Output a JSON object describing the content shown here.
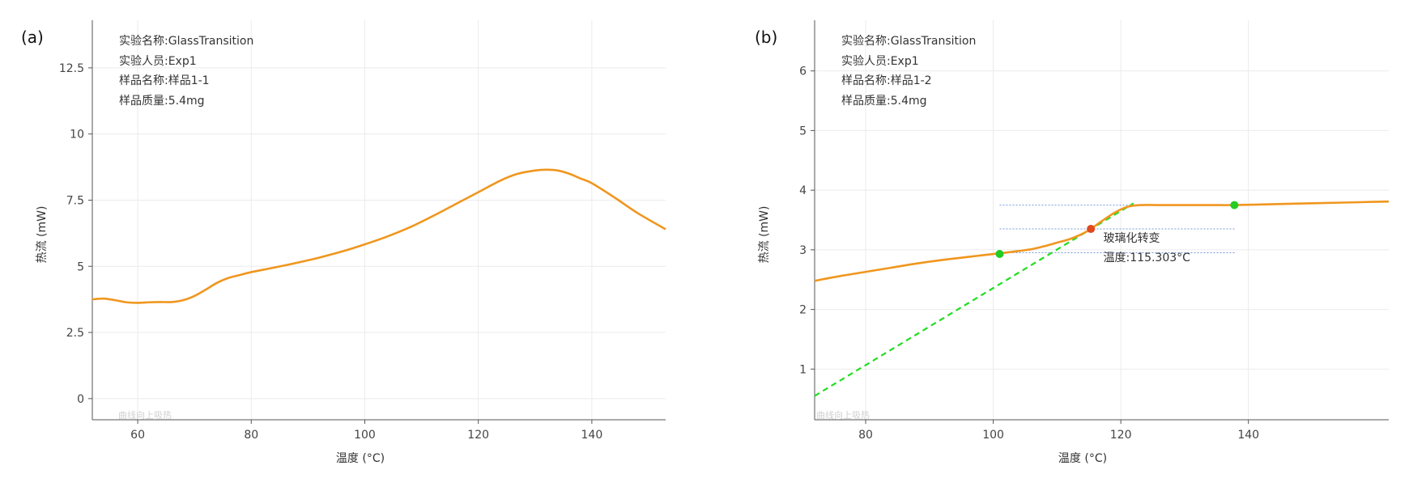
{
  "chart_data": [
    {
      "type": "line",
      "panel_label": "(a)",
      "info": [
        "实验名称:GlassTransition",
        "实验人员:Exp1",
        "样品名称:样品1-1",
        "样品质量:5.4mg"
      ],
      "xlabel": "温度 (°C)",
      "ylabel": "热流 (mW)",
      "xlim": [
        52,
        153
      ],
      "ylim": [
        -0.8,
        14.3
      ],
      "xticks": [
        60,
        80,
        100,
        120,
        140
      ],
      "yticks": [
        0,
        2.5,
        5,
        7.5,
        10,
        12.5
      ],
      "ytick_labels": [
        "0",
        "2.5",
        "5",
        "7.5",
        "10",
        "12.5"
      ],
      "grid": true,
      "watermark": "曲线向上吸热",
      "series": [
        {
          "name": "heat-flow",
          "color": "#f0961e",
          "x": [
            52,
            54,
            56,
            58,
            60,
            62,
            64,
            66,
            68,
            70,
            72,
            74,
            76,
            78,
            80,
            84,
            88,
            92,
            96,
            100,
            104,
            108,
            112,
            116,
            120,
            124,
            127,
            130,
            132,
            134,
            136,
            138,
            140,
            144,
            148,
            153
          ],
          "y": [
            3.75,
            3.78,
            3.72,
            3.64,
            3.62,
            3.64,
            3.65,
            3.65,
            3.72,
            3.88,
            4.12,
            4.38,
            4.56,
            4.67,
            4.78,
            4.95,
            5.13,
            5.33,
            5.56,
            5.83,
            6.13,
            6.48,
            6.9,
            7.35,
            7.8,
            8.25,
            8.5,
            8.62,
            8.65,
            8.62,
            8.5,
            8.32,
            8.14,
            7.6,
            7.02,
            6.4
          ]
        }
      ]
    },
    {
      "type": "line",
      "panel_label": "(b)",
      "info": [
        "实验名称:GlassTransition",
        "实验人员:Exp1",
        "样品名称:样品1-2",
        "样品质量:5.4mg"
      ],
      "xlabel": "温度 (°C)",
      "ylabel": "热流 (mW)",
      "xlim": [
        72,
        162
      ],
      "ylim": [
        0.15,
        6.85
      ],
      "xticks": [
        80,
        100,
        120,
        140
      ],
      "yticks": [
        1,
        2,
        3,
        4,
        5,
        6
      ],
      "ytick_labels": [
        "1",
        "2",
        "3",
        "4",
        "5",
        "6"
      ],
      "grid": true,
      "watermark": "曲线向上吸热",
      "series": [
        {
          "name": "heat-flow",
          "color": "#f0961e",
          "x": [
            72,
            76,
            80,
            84,
            88,
            92,
            96,
            100,
            101,
            104,
            106,
            108,
            110,
            112,
            114,
            115.3,
            117,
            119,
            121,
            123,
            126,
            130,
            134,
            138,
            142,
            146,
            150,
            154,
            158,
            162
          ],
          "y": [
            2.48,
            2.56,
            2.63,
            2.7,
            2.77,
            2.83,
            2.88,
            2.93,
            2.94,
            2.98,
            3.01,
            3.06,
            3.12,
            3.18,
            3.27,
            3.35,
            3.48,
            3.62,
            3.72,
            3.75,
            3.75,
            3.75,
            3.75,
            3.75,
            3.76,
            3.77,
            3.78,
            3.79,
            3.8,
            3.81
          ]
        }
      ],
      "tangent_line": {
        "color": "#22dd22",
        "x": [
          72,
          122
        ],
        "y": [
          0.55,
          3.78
        ]
      },
      "reference_lines": {
        "color": "#7799dd",
        "y": [
          2.95,
          3.35,
          3.75
        ],
        "x_start": 101,
        "x_end": 138
      },
      "markers": [
        {
          "name": "onset-point",
          "x": 101,
          "y": 2.93,
          "color": "#22cc22"
        },
        {
          "name": "midpoint",
          "x": 115.3,
          "y": 3.35,
          "color": "#e04a1e"
        },
        {
          "name": "endset-point",
          "x": 137.8,
          "y": 3.75,
          "color": "#22cc22"
        }
      ],
      "annotation": {
        "title": "玻璃化转变",
        "value": "温度:115.303°C",
        "x": 116.5,
        "y": 3.35
      }
    }
  ]
}
